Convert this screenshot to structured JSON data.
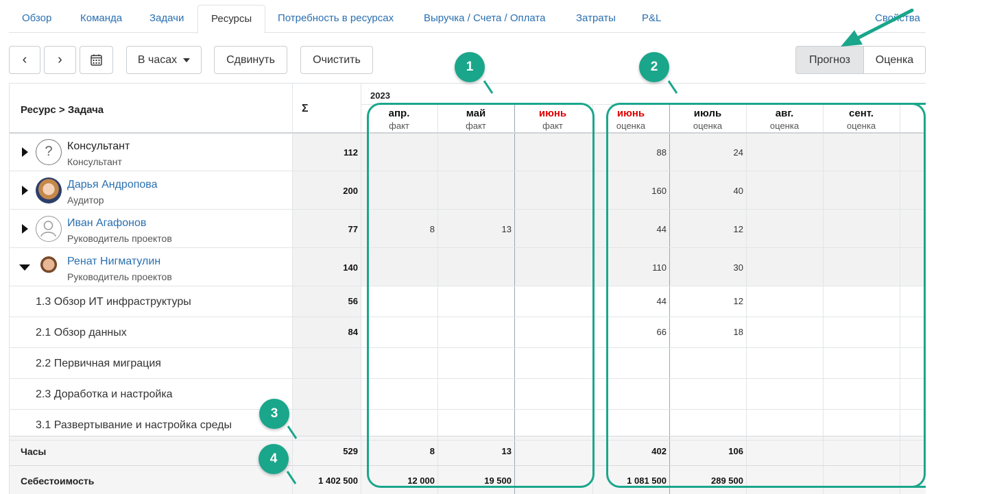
{
  "tabs": [
    "Обзор",
    "Команда",
    "Задачи",
    "Ресурсы",
    "Потребность в ресурсах",
    "Выручка / Счета / Оплата",
    "Затраты",
    "P&L",
    "Свойства"
  ],
  "toolbar": {
    "prev": "‹",
    "next": "›",
    "units": "В часах",
    "shift": "Сдвинуть",
    "clear": "Очистить",
    "mode_forecast": "Прогноз",
    "mode_estimate": "Оценка"
  },
  "table": {
    "col_resource": "Ресурс > Задача",
    "col_sum": "Σ",
    "year": "2023",
    "months": [
      {
        "name": "апр.",
        "sub": "факт",
        "red": false
      },
      {
        "name": "май",
        "sub": "факт",
        "red": false
      },
      {
        "name": "июнь",
        "sub": "факт",
        "red": true
      },
      {
        "name": "июнь",
        "sub": "оценка",
        "red": true
      },
      {
        "name": "июль",
        "sub": "оценка",
        "red": false
      },
      {
        "name": "авг.",
        "sub": "оценка",
        "red": false
      },
      {
        "name": "сент.",
        "sub": "оценка",
        "red": false
      }
    ],
    "resources": [
      {
        "name": "Консультант",
        "role": "Консультант",
        "sum": "112",
        "values": [
          "",
          "",
          "",
          "88",
          "24",
          "",
          ""
        ],
        "avatar": "question-avatar"
      },
      {
        "name": "Дарья Андропова",
        "role": "Аудитор",
        "sum": "200",
        "values": [
          "",
          "",
          "",
          "160",
          "40",
          "",
          ""
        ],
        "avatar": "photo-woman"
      },
      {
        "name": "Иван Агафонов",
        "role": "Руководитель проектов",
        "sum": "77",
        "values": [
          "8",
          "13",
          "",
          "44",
          "12",
          "",
          ""
        ],
        "avatar": "placeholder-avatar"
      },
      {
        "name": "Ренат Нигматулин",
        "role": "Руководитель проектов",
        "sum": "140",
        "values": [
          "",
          "",
          "",
          "110",
          "30",
          "",
          ""
        ],
        "avatar": "photo-man"
      }
    ],
    "tasks": [
      {
        "name": "1.3 Обзор ИТ инфраструктуры",
        "sum": "56",
        "values": [
          "",
          "",
          "",
          "44",
          "12",
          "",
          ""
        ]
      },
      {
        "name": "2.1 Обзор данных",
        "sum": "84",
        "values": [
          "",
          "",
          "",
          "66",
          "18",
          "",
          ""
        ]
      },
      {
        "name": "2.2 Первичная миграция",
        "sum": "",
        "values": [
          "",
          "",
          "",
          "",
          "",
          "",
          ""
        ]
      },
      {
        "name": "2.3 Доработка и настройка",
        "sum": "",
        "values": [
          "",
          "",
          "",
          "",
          "",
          "",
          ""
        ]
      },
      {
        "name": "3.1 Развертывание и настройка среды",
        "sum": "",
        "values": [
          "",
          "",
          "",
          "",
          "",
          "",
          ""
        ]
      }
    ],
    "totals": [
      {
        "label": "Часы",
        "sum": "529",
        "values": [
          "8",
          "13",
          "",
          "402",
          "106",
          "",
          ""
        ]
      },
      {
        "label": "Себестоимость",
        "sum": "1 402 500",
        "values": [
          "12 000",
          "19 500",
          "",
          "1 081 500",
          "289 500",
          "",
          ""
        ]
      }
    ]
  },
  "annotations": [
    "1",
    "2",
    "3",
    "4"
  ],
  "colors": {
    "accent": "#1aa68b",
    "link": "#2a6fb0",
    "current_month": "#e00000"
  }
}
